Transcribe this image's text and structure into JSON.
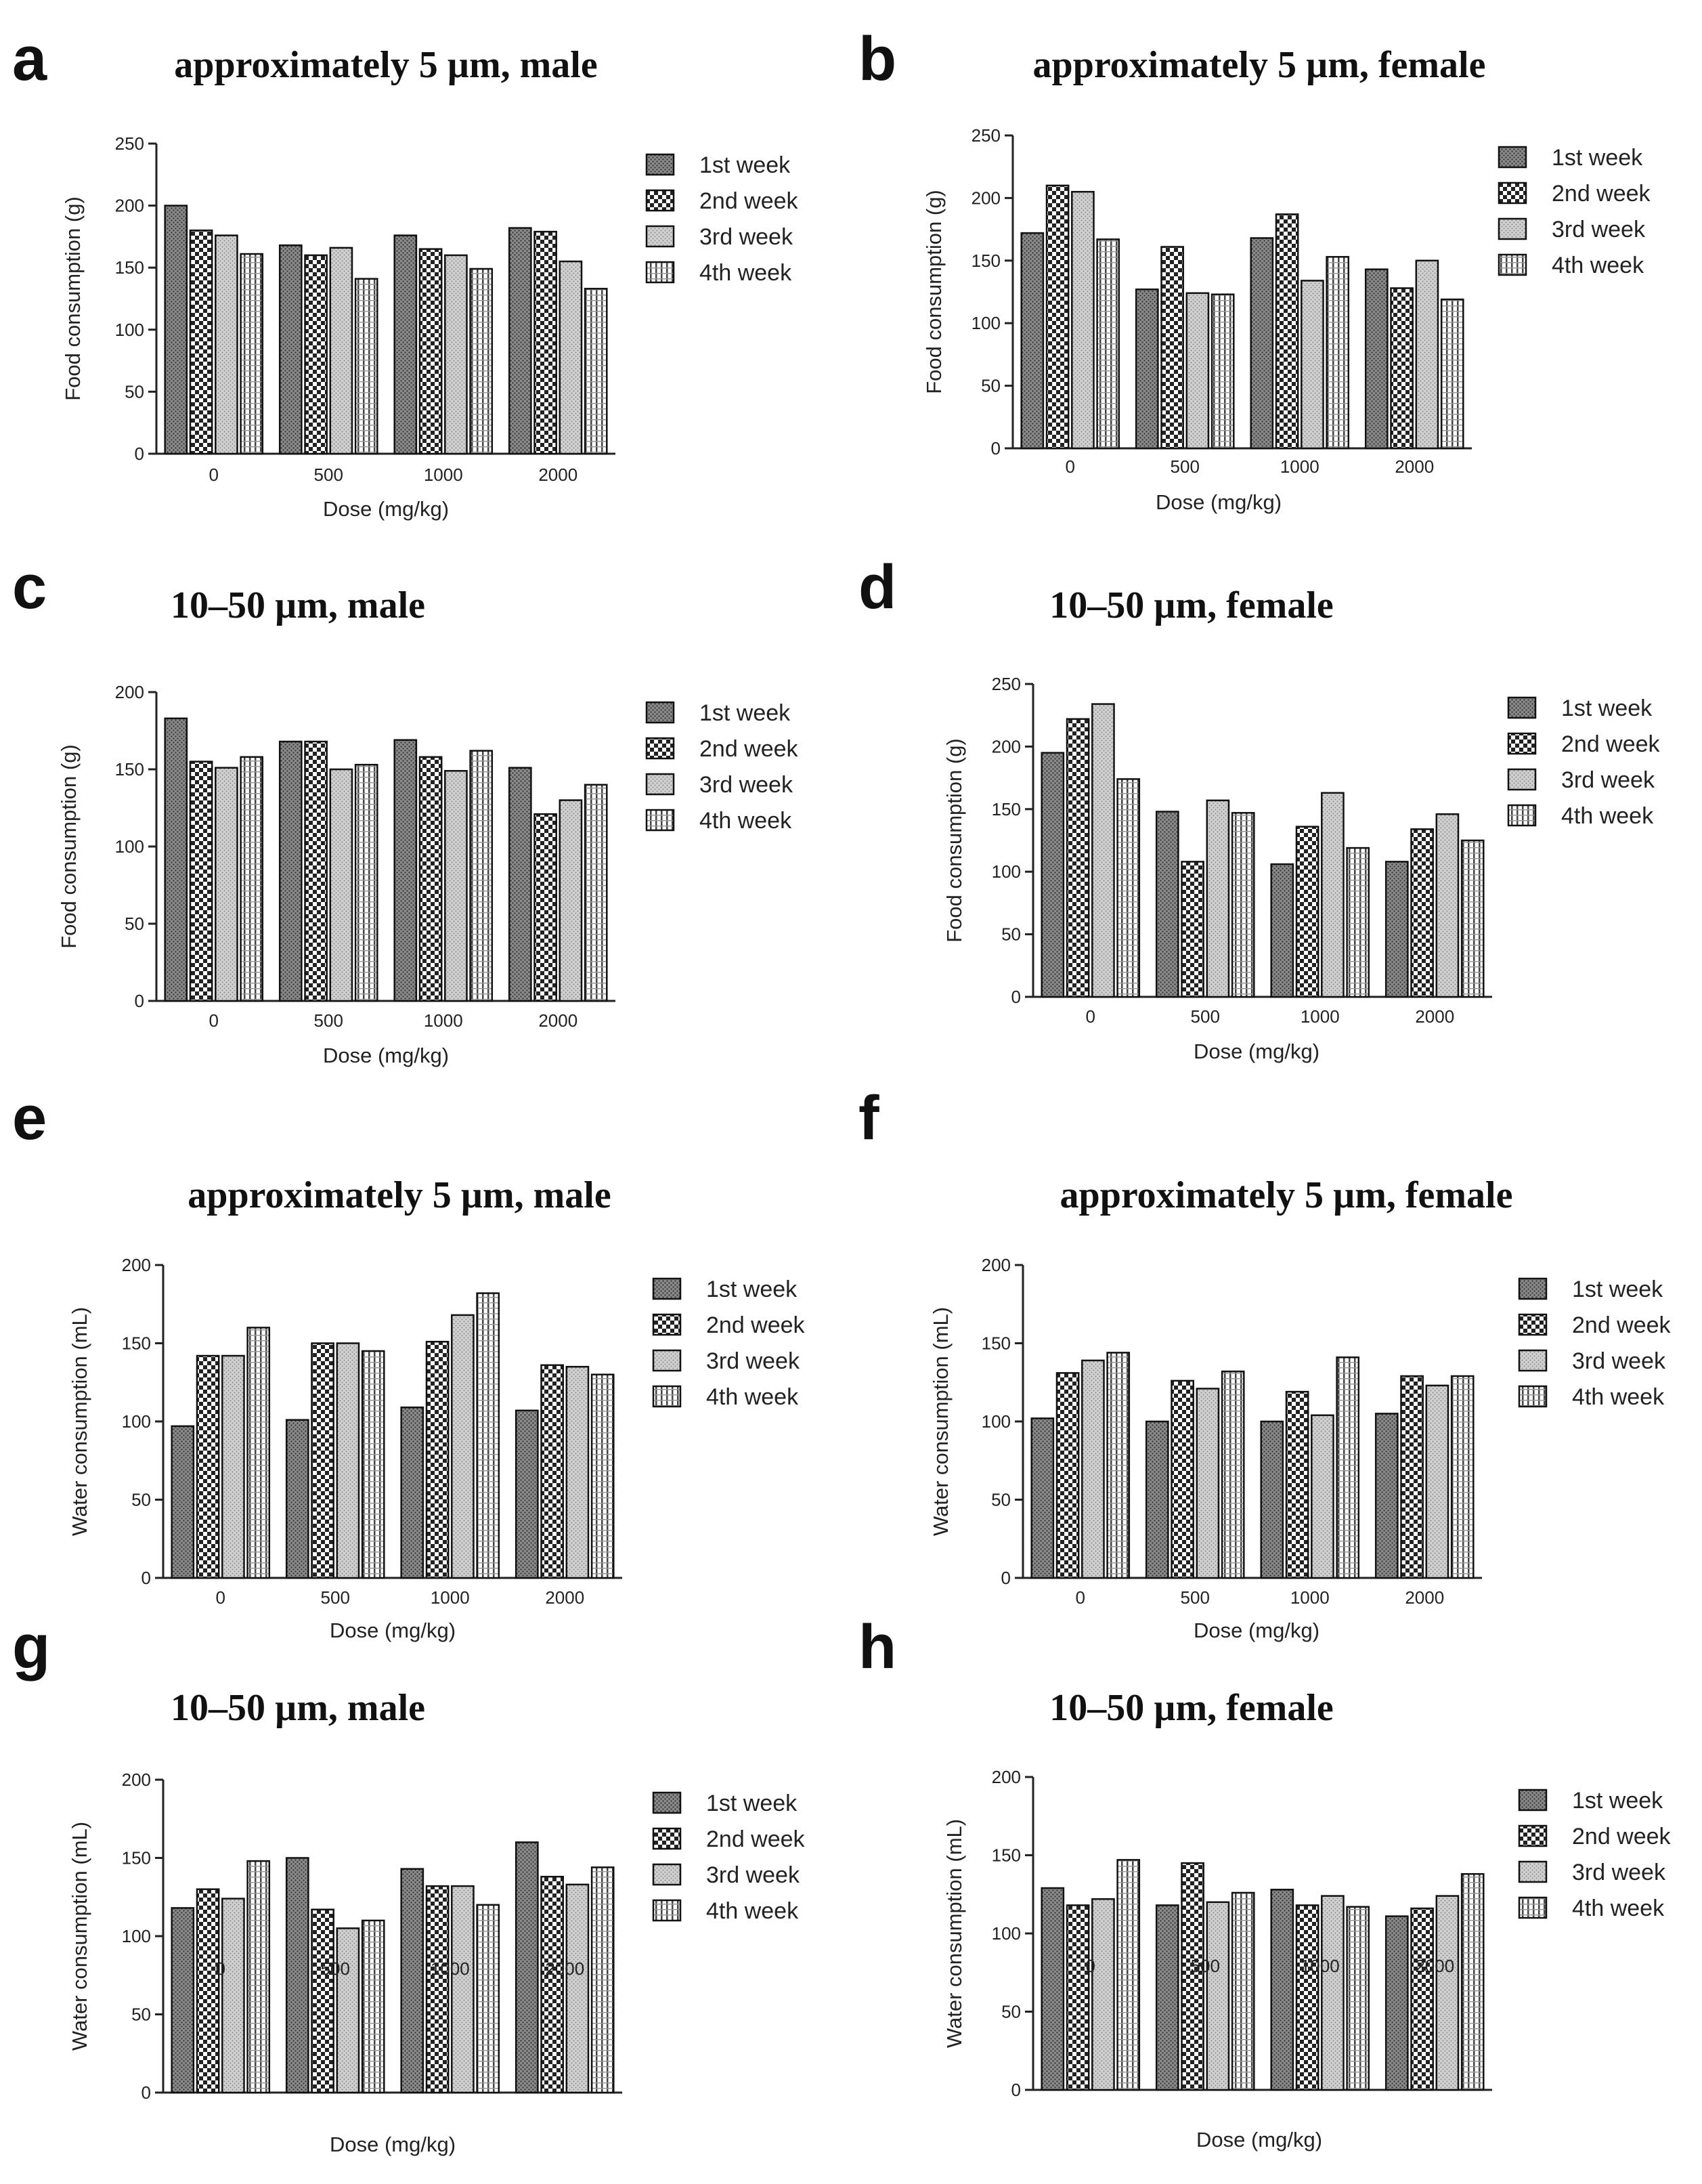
{
  "legend": [
    "1st week",
    "2nd week",
    "3rd week",
    "4th week"
  ],
  "series_styles": [
    {
      "name": "1st week",
      "fill": "#7a7a7a",
      "pattern": "fine-dots"
    },
    {
      "name": "2nd week",
      "fill": "#ffffff",
      "pattern": "checker"
    },
    {
      "name": "3rd week",
      "fill": "#c8c8c8",
      "pattern": "light-dots"
    },
    {
      "name": "4th week",
      "fill": "#ffffff",
      "pattern": "vertical-lines"
    }
  ],
  "chart_data": [
    {
      "panel": "a",
      "type": "bar",
      "title": "approximately 5 µm, male",
      "xlabel": "Dose (mg/kg)",
      "ylabel": "Food consumption (g)",
      "categories": [
        "0",
        "500",
        "1000",
        "2000"
      ],
      "ylim": [
        0,
        250
      ],
      "yticks": [
        0,
        50,
        100,
        150,
        200,
        250
      ],
      "series": [
        {
          "name": "1st week",
          "values": [
            200,
            168,
            176,
            182
          ]
        },
        {
          "name": "2nd week",
          "values": [
            180,
            160,
            165,
            179
          ]
        },
        {
          "name": "3rd week",
          "values": [
            176,
            166,
            160,
            155
          ]
        },
        {
          "name": "4th week",
          "values": [
            161,
            141,
            149,
            133
          ]
        }
      ]
    },
    {
      "panel": "b",
      "type": "bar",
      "title": "approximately 5 µm, female",
      "xlabel": "Dose (mg/kg)",
      "ylabel": "Food consumption (g)",
      "categories": [
        "0",
        "500",
        "1000",
        "2000"
      ],
      "ylim": [
        0,
        250
      ],
      "yticks": [
        0,
        50,
        100,
        150,
        200,
        250
      ],
      "series": [
        {
          "name": "1st week",
          "values": [
            172,
            127,
            168,
            143
          ]
        },
        {
          "name": "2nd week",
          "values": [
            210,
            161,
            187,
            128
          ]
        },
        {
          "name": "3rd week",
          "values": [
            205,
            124,
            134,
            150
          ]
        },
        {
          "name": "4th week",
          "values": [
            167,
            123,
            153,
            119
          ]
        }
      ]
    },
    {
      "panel": "c",
      "type": "bar",
      "title": "10–50 µm, male",
      "xlabel": "Dose (mg/kg)",
      "ylabel": "Food consumption (g)",
      "categories": [
        "0",
        "500",
        "1000",
        "2000"
      ],
      "ylim": [
        0,
        200
      ],
      "yticks": [
        0,
        50,
        100,
        150,
        200
      ],
      "series": [
        {
          "name": "1st week",
          "values": [
            183,
            168,
            169,
            151
          ]
        },
        {
          "name": "2nd week",
          "values": [
            155,
            168,
            158,
            121
          ]
        },
        {
          "name": "3rd week",
          "values": [
            151,
            150,
            149,
            130
          ]
        },
        {
          "name": "4th week",
          "values": [
            158,
            153,
            162,
            140
          ]
        }
      ]
    },
    {
      "panel": "d",
      "type": "bar",
      "title": "10–50 µm, female",
      "xlabel": "Dose (mg/kg)",
      "ylabel": "Food consumption (g)",
      "categories": [
        "0",
        "500",
        "1000",
        "2000"
      ],
      "ylim": [
        0,
        250
      ],
      "yticks": [
        0,
        50,
        100,
        150,
        200,
        250
      ],
      "series": [
        {
          "name": "1st week",
          "values": [
            195,
            148,
            106,
            108
          ]
        },
        {
          "name": "2nd week",
          "values": [
            222,
            108,
            136,
            134
          ]
        },
        {
          "name": "3rd week",
          "values": [
            234,
            157,
            163,
            146
          ]
        },
        {
          "name": "4th week",
          "values": [
            174,
            147,
            119,
            125
          ]
        }
      ]
    },
    {
      "panel": "e",
      "type": "bar",
      "title": "approximately 5 µm, male",
      "xlabel": "Dose (mg/kg)",
      "ylabel": "Water consumption (mL)",
      "categories": [
        "0",
        "500",
        "1000",
        "2000"
      ],
      "ylim": [
        0,
        200
      ],
      "yticks": [
        0,
        50,
        100,
        150,
        200
      ],
      "series": [
        {
          "name": "1st week",
          "values": [
            97,
            101,
            109,
            107
          ]
        },
        {
          "name": "2nd week",
          "values": [
            142,
            150,
            151,
            136
          ]
        },
        {
          "name": "3rd week",
          "values": [
            142,
            150,
            168,
            135
          ]
        },
        {
          "name": "4th week",
          "values": [
            160,
            145,
            182,
            130
          ]
        }
      ]
    },
    {
      "panel": "f",
      "type": "bar",
      "title": "approximately 5 µm, female",
      "xlabel": "Dose (mg/kg)",
      "ylabel": "Water consumption (mL)",
      "categories": [
        "0",
        "500",
        "1000",
        "2000"
      ],
      "ylim": [
        0,
        200
      ],
      "yticks": [
        0,
        50,
        100,
        150,
        200
      ],
      "series": [
        {
          "name": "1st week",
          "values": [
            102,
            100,
            100,
            105
          ]
        },
        {
          "name": "2nd week",
          "values": [
            131,
            126,
            119,
            129
          ]
        },
        {
          "name": "3rd week",
          "values": [
            139,
            121,
            104,
            123
          ]
        },
        {
          "name": "4th week",
          "values": [
            144,
            132,
            141,
            129
          ]
        }
      ]
    },
    {
      "panel": "g",
      "type": "bar",
      "title": "10–50 µm, male",
      "xlabel": "Dose (mg/kg)",
      "ylabel": "Water consumption (mL)",
      "categories": [
        "0",
        "500",
        "1000",
        "2000"
      ],
      "ylim": [
        0,
        200
      ],
      "yticks": [
        0,
        50,
        100,
        150,
        200
      ],
      "series": [
        {
          "name": "1st week",
          "values": [
            118,
            150,
            143,
            160
          ]
        },
        {
          "name": "2nd week",
          "values": [
            130,
            117,
            132,
            138
          ]
        },
        {
          "name": "3rd week",
          "values": [
            124,
            105,
            132,
            133
          ]
        },
        {
          "name": "4th week",
          "values": [
            148,
            110,
            120,
            144
          ]
        }
      ]
    },
    {
      "panel": "h",
      "type": "bar",
      "title": "10–50 µm, female",
      "xlabel": "Dose (mg/kg)",
      "ylabel": "Water consumption (mL)",
      "categories": [
        "0",
        "500",
        "1000",
        "2000"
      ],
      "ylim": [
        0,
        200
      ],
      "yticks": [
        0,
        50,
        100,
        150,
        200
      ],
      "series": [
        {
          "name": "1st week",
          "values": [
            129,
            118,
            128,
            111
          ]
        },
        {
          "name": "2nd week",
          "values": [
            118,
            145,
            118,
            116
          ]
        },
        {
          "name": "3rd week",
          "values": [
            122,
            120,
            124,
            124
          ]
        },
        {
          "name": "4th week",
          "values": [
            147,
            126,
            117,
            138
          ]
        }
      ]
    }
  ]
}
